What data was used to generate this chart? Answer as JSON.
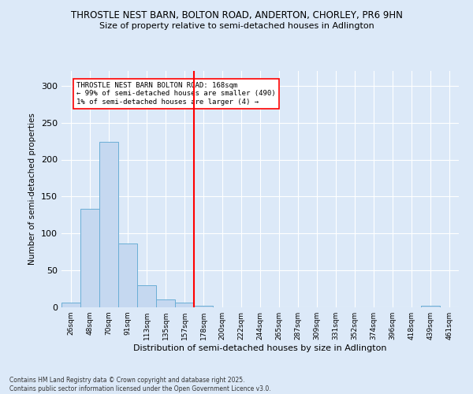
{
  "title_line1": "THROSTLE NEST BARN, BOLTON ROAD, ANDERTON, CHORLEY, PR6 9HN",
  "title_line2": "Size of property relative to semi-detached houses in Adlington",
  "xlabel": "Distribution of semi-detached houses by size in Adlington",
  "ylabel": "Number of semi-detached properties",
  "bin_labels": [
    "26sqm",
    "48sqm",
    "70sqm",
    "91sqm",
    "113sqm",
    "135sqm",
    "157sqm",
    "178sqm",
    "200sqm",
    "222sqm",
    "244sqm",
    "265sqm",
    "287sqm",
    "309sqm",
    "331sqm",
    "352sqm",
    "374sqm",
    "396sqm",
    "418sqm",
    "439sqm",
    "461sqm"
  ],
  "bar_values": [
    6,
    133,
    224,
    86,
    30,
    11,
    6,
    2,
    0,
    0,
    0,
    0,
    0,
    0,
    0,
    0,
    0,
    0,
    0,
    2,
    0
  ],
  "bar_color": "#c5d8f0",
  "bar_edge_color": "#6aaed6",
  "vline_color": "red",
  "annotation_title": "THROSTLE NEST BARN BOLTON ROAD: 168sqm",
  "annotation_line2": "← 99% of semi-detached houses are smaller (490)",
  "annotation_line3": "1% of semi-detached houses are larger (4) →",
  "ylim": [
    0,
    320
  ],
  "yticks": [
    0,
    50,
    100,
    150,
    200,
    250,
    300
  ],
  "background_color": "#dce9f8",
  "footer_line1": "Contains HM Land Registry data © Crown copyright and database right 2025.",
  "footer_line2": "Contains public sector information licensed under the Open Government Licence v3.0."
}
